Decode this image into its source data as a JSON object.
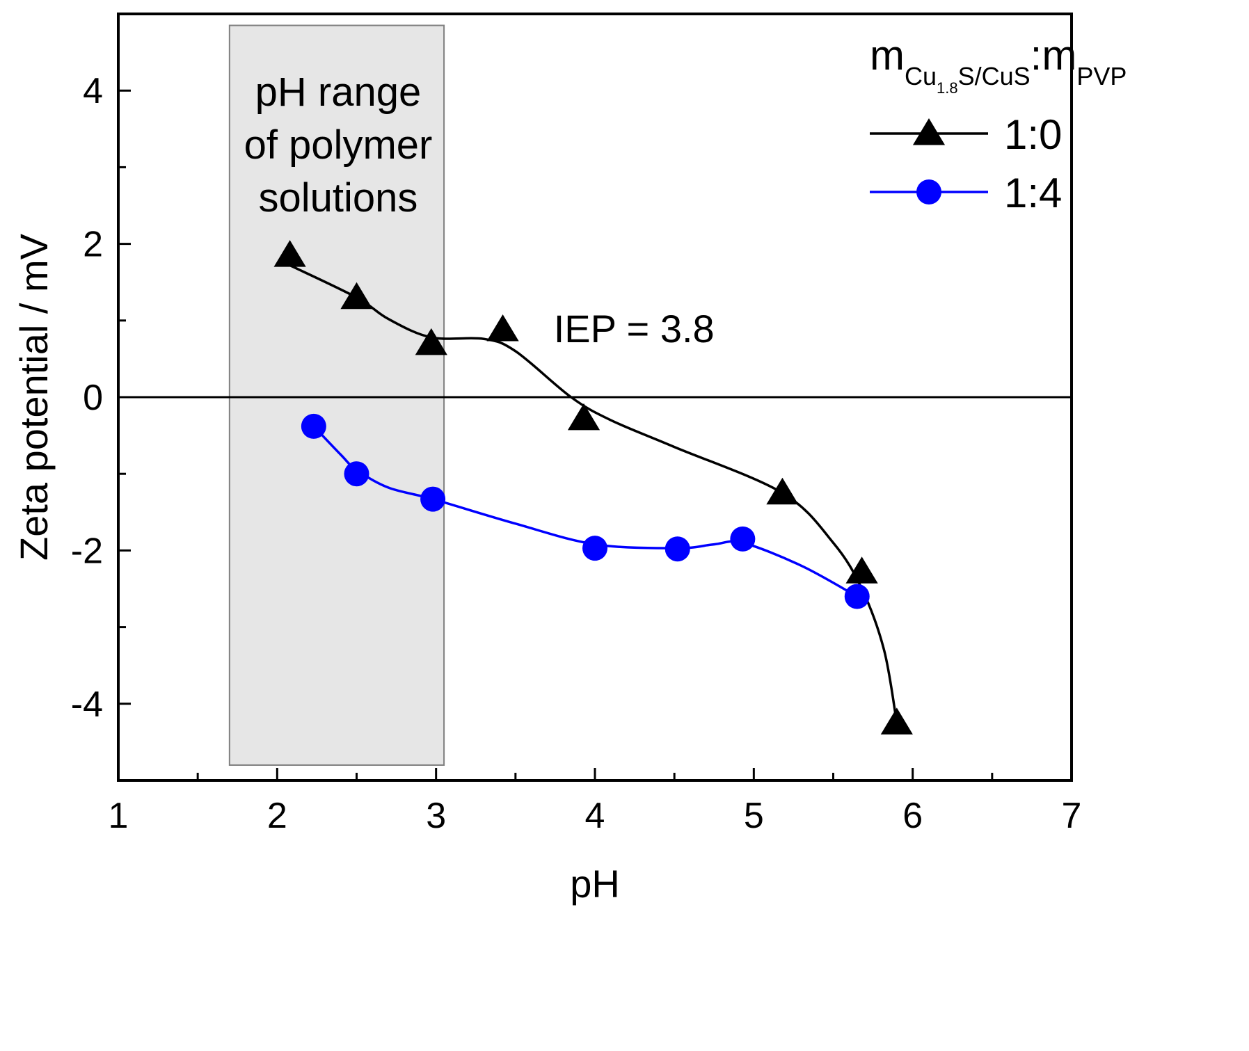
{
  "chart_data": {
    "type": "line",
    "xlabel": "pH",
    "ylabel": "Zeta potential / mV",
    "xlim": [
      1,
      7
    ],
    "ylim": [
      -5,
      5
    ],
    "x_ticks": [
      "1",
      "2",
      "3",
      "4",
      "5",
      "6",
      "7"
    ],
    "y_ticks": [
      "4",
      "2",
      "0",
      "-2",
      "-4"
    ],
    "x_tick_values": [
      1,
      2,
      3,
      4,
      5,
      6,
      7
    ],
    "y_tick_values": [
      4,
      2,
      0,
      -2,
      -4
    ],
    "grid": false,
    "legend_position": "top-right",
    "legend_title": {
      "main_m1": "m",
      "sub1_a": "Cu",
      "sub1_b": "1.8",
      "sub1_c": "S/CuS",
      "colon": ":",
      "main_m2": "m",
      "sub2": "PVP"
    },
    "shaded_region": {
      "x_range": [
        1.7,
        3.05
      ],
      "y_range": [
        -4.8,
        4.85
      ],
      "label_lines": [
        "pH range",
        "of polymer",
        "solutions"
      ],
      "color": "#e6e6e6"
    },
    "reference_line": {
      "y": 0
    },
    "annotations": [
      {
        "text": "IEP = 3.8",
        "x": 3.85,
        "y": 0.9
      }
    ],
    "series": [
      {
        "name": "1:0",
        "marker": "triangle",
        "color": "#000000",
        "points": [
          {
            "x": 2.08,
            "y": 1.85
          },
          {
            "x": 2.5,
            "y": 1.3
          },
          {
            "x": 2.97,
            "y": 0.7
          },
          {
            "x": 3.42,
            "y": 0.88
          },
          {
            "x": 3.93,
            "y": -0.28
          },
          {
            "x": 5.18,
            "y": -1.25
          },
          {
            "x": 5.68,
            "y": -2.28
          },
          {
            "x": 5.9,
            "y": -4.25
          }
        ],
        "curve": [
          [
            2.08,
            1.72
          ],
          [
            2.5,
            1.3
          ],
          [
            2.7,
            1.02
          ],
          [
            2.97,
            0.78
          ],
          [
            3.3,
            0.76
          ],
          [
            3.5,
            0.6
          ],
          [
            3.85,
            0.0
          ],
          [
            4.1,
            -0.3
          ],
          [
            4.5,
            -0.65
          ],
          [
            5.18,
            -1.25
          ],
          [
            5.5,
            -1.9
          ],
          [
            5.68,
            -2.5
          ],
          [
            5.82,
            -3.3
          ],
          [
            5.9,
            -4.25
          ]
        ]
      },
      {
        "name": "1:4",
        "marker": "circle",
        "color": "#0000ff",
        "points": [
          {
            "x": 2.23,
            "y": -0.38
          },
          {
            "x": 2.5,
            "y": -1.0
          },
          {
            "x": 2.98,
            "y": -1.33
          },
          {
            "x": 4.0,
            "y": -1.97
          },
          {
            "x": 4.52,
            "y": -1.98
          },
          {
            "x": 4.93,
            "y": -1.85
          },
          {
            "x": 5.65,
            "y": -2.6
          }
        ],
        "curve": [
          [
            2.23,
            -0.38
          ],
          [
            2.4,
            -0.75
          ],
          [
            2.5,
            -0.95
          ],
          [
            2.7,
            -1.18
          ],
          [
            2.98,
            -1.33
          ],
          [
            3.5,
            -1.65
          ],
          [
            4.0,
            -1.92
          ],
          [
            4.52,
            -1.97
          ],
          [
            4.75,
            -1.92
          ],
          [
            4.93,
            -1.9
          ],
          [
            5.3,
            -2.2
          ],
          [
            5.65,
            -2.6
          ]
        ]
      }
    ]
  }
}
